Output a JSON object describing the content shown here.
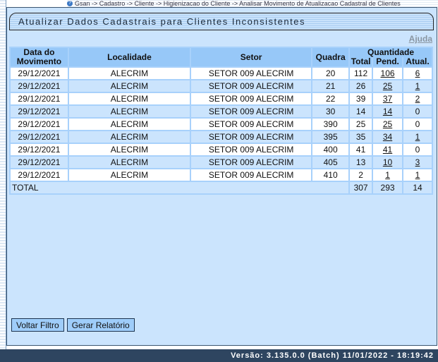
{
  "breadcrumb": "Gsan -> Cadastro -> Cliente -> Higienizacao do Cliente -> Analisar Movimento de Atualizacao Cadastral de Clientes",
  "title": "Atualizar Dados Cadastrais para Clientes Inconsistentes",
  "help_link": "Ajuda",
  "table": {
    "headers": {
      "data": "Data do Movimento",
      "localidade": "Localidade",
      "setor": "Setor",
      "quadra": "Quadra",
      "quantidade": "Quantidade",
      "total": "Total",
      "pend": "Pend.",
      "atual": "Atual."
    },
    "rows": [
      {
        "data": "29/12/2021",
        "localidade": "ALECRIM",
        "setor": "SETOR 009 ALECRIM",
        "quadra": "20",
        "total": "112",
        "pend": "106",
        "atual": "6"
      },
      {
        "data": "29/12/2021",
        "localidade": "ALECRIM",
        "setor": "SETOR 009 ALECRIM",
        "quadra": "21",
        "total": "26",
        "pend": "25",
        "atual": "1"
      },
      {
        "data": "29/12/2021",
        "localidade": "ALECRIM",
        "setor": "SETOR 009 ALECRIM",
        "quadra": "22",
        "total": "39",
        "pend": "37",
        "atual": "2"
      },
      {
        "data": "29/12/2021",
        "localidade": "ALECRIM",
        "setor": "SETOR 009 ALECRIM",
        "quadra": "30",
        "total": "14",
        "pend": "14",
        "atual": "0"
      },
      {
        "data": "29/12/2021",
        "localidade": "ALECRIM",
        "setor": "SETOR 009 ALECRIM",
        "quadra": "390",
        "total": "25",
        "pend": "25",
        "atual": "0"
      },
      {
        "data": "29/12/2021",
        "localidade": "ALECRIM",
        "setor": "SETOR 009 ALECRIM",
        "quadra": "395",
        "total": "35",
        "pend": "34",
        "atual": "1"
      },
      {
        "data": "29/12/2021",
        "localidade": "ALECRIM",
        "setor": "SETOR 009 ALECRIM",
        "quadra": "400",
        "total": "41",
        "pend": "41",
        "atual": "0"
      },
      {
        "data": "29/12/2021",
        "localidade": "ALECRIM",
        "setor": "SETOR 009 ALECRIM",
        "quadra": "405",
        "total": "13",
        "pend": "10",
        "atual": "3"
      },
      {
        "data": "29/12/2021",
        "localidade": "ALECRIM",
        "setor": "SETOR 009 ALECRIM",
        "quadra": "410",
        "total": "2",
        "pend": "1",
        "atual": "1"
      }
    ],
    "totals": {
      "label": "TOTAL",
      "total": "307",
      "pend": "293",
      "atual": "14"
    }
  },
  "buttons": {
    "voltar": "Voltar Filtro",
    "gerar": "Gerar Relatório"
  },
  "footer": "Versão: 3.135.0.0 (Batch) 11/01/2022 - 18:19:42"
}
